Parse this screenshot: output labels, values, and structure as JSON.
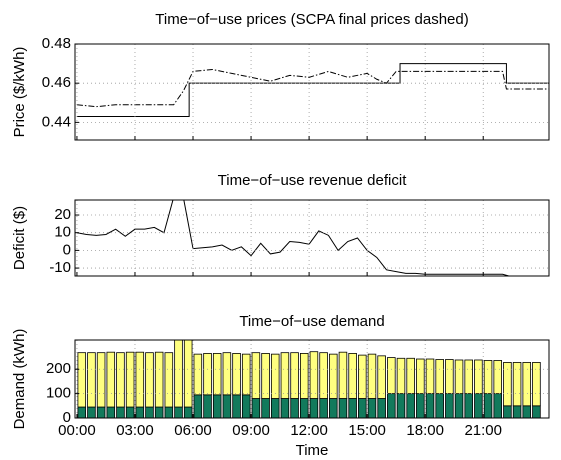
{
  "chart_data": [
    {
      "type": "line",
      "title": "Time−of−use prices (SCPA final prices dashed)",
      "ylabel": "Price ($/kWh)",
      "xlim": [
        -0.1,
        24.4
      ],
      "xticks": [
        0,
        3,
        6,
        9,
        12,
        15,
        18,
        21
      ],
      "ylim": [
        0.431,
        0.48
      ],
      "yticks": [
        0.44,
        0.46,
        0.48
      ],
      "grid": true,
      "series": [
        {
          "color": "#000000",
          "style": "solid",
          "x": [
            0,
            5.8,
            5.8,
            16.7,
            16.7,
            22.2,
            22.2,
            24.4
          ],
          "values": [
            0.443,
            0.443,
            0.46,
            0.46,
            0.47,
            0.47,
            0.46,
            0.46
          ]
        },
        {
          "color": "#000000",
          "style": "dashdot",
          "x": [
            0,
            1,
            2,
            3,
            4,
            5,
            5.5,
            6,
            7,
            8,
            9,
            10,
            11,
            12,
            13,
            14,
            15,
            15.5,
            16,
            16.5,
            17,
            22,
            22.2,
            24.4
          ],
          "values": [
            0.449,
            0.448,
            0.449,
            0.449,
            0.449,
            0.449,
            0.456,
            0.466,
            0.467,
            0.465,
            0.463,
            0.461,
            0.464,
            0.463,
            0.466,
            0.463,
            0.465,
            0.462,
            0.46,
            0.466,
            0.466,
            0.466,
            0.457,
            0.457
          ]
        }
      ]
    },
    {
      "type": "line",
      "title": "Time−of−use revenue deficit",
      "ylabel": "Deficit ($)",
      "xlim": [
        -0.1,
        24.4
      ],
      "xticks": [
        0,
        3,
        6,
        9,
        12,
        15,
        18,
        21
      ],
      "ylim": [
        -14.5,
        28.5
      ],
      "yticks": [
        -10,
        0,
        10,
        20
      ],
      "grid": true,
      "series": [
        {
          "color": "#000000",
          "style": "solid",
          "x": [
            0,
            0.5,
            1,
            1.5,
            2,
            2.5,
            3,
            3.5,
            4,
            4.5,
            5,
            5.5,
            6,
            6.5,
            7,
            7.5,
            8,
            8.5,
            9,
            9.5,
            10,
            10.5,
            11,
            11.5,
            12,
            12.5,
            13,
            13.5,
            14,
            14.5,
            15,
            15.5,
            16,
            16.5,
            17,
            17.5,
            18,
            18.5,
            19,
            19.5,
            20,
            20.5,
            21,
            21.5,
            22,
            22.5,
            23,
            23.5
          ],
          "values": [
            10,
            9,
            8.5,
            9,
            12,
            8,
            12,
            12,
            13,
            10,
            30,
            30,
            1,
            1.5,
            2,
            3,
            0,
            2,
            -3,
            4,
            -2,
            -1,
            5,
            4.5,
            3.5,
            11,
            8.5,
            0,
            5,
            7,
            0,
            -4,
            -11,
            -12,
            -13,
            -13,
            -13.5,
            -13.5,
            -13.5,
            -13.5,
            -13.5,
            -13.5,
            -13.5,
            -13.5,
            -13.5,
            -15,
            -15,
            -15
          ]
        }
      ]
    },
    {
      "type": "bar",
      "title": "Time−of−use demand",
      "ylabel": "Demand (kWh)",
      "xlabel": "Time",
      "stacked": true,
      "xlim": [
        -0.1,
        24.4
      ],
      "xticks": [
        {
          "value": 0,
          "label": "00:00"
        },
        {
          "value": 3,
          "label": "03:00"
        },
        {
          "value": 6,
          "label": "06:00"
        },
        {
          "value": 9,
          "label": "09:00"
        },
        {
          "value": 12,
          "label": "12:00"
        },
        {
          "value": 15,
          "label": "15:00"
        },
        {
          "value": 18,
          "label": "18:00"
        },
        {
          "value": 21,
          "label": "21:00"
        }
      ],
      "ylim": [
        0,
        320
      ],
      "yticks": [
        0,
        100,
        200
      ],
      "grid": true,
      "x": [
        0.25,
        0.75,
        1.25,
        1.75,
        2.25,
        2.75,
        3.25,
        3.75,
        4.25,
        4.75,
        5.25,
        5.75,
        6.25,
        6.75,
        7.25,
        7.75,
        8.25,
        8.75,
        9.25,
        9.75,
        10.25,
        10.75,
        11.25,
        11.75,
        12.25,
        12.75,
        13.25,
        13.75,
        14.25,
        14.75,
        15.25,
        15.75,
        16.25,
        16.75,
        17.25,
        17.75,
        18.25,
        18.75,
        19.25,
        19.75,
        20.25,
        20.75,
        21.25,
        21.75,
        22.25,
        22.75,
        23.25,
        23.75
      ],
      "series": [
        {
          "color": "#127a5c",
          "values": [
            45,
            45,
            45,
            45,
            45,
            45,
            45,
            45,
            45,
            45,
            45,
            45,
            95,
            95,
            95,
            95,
            95,
            95,
            80,
            80,
            80,
            80,
            80,
            80,
            80,
            80,
            80,
            80,
            80,
            80,
            80,
            80,
            100,
            100,
            100,
            100,
            100,
            100,
            100,
            100,
            100,
            100,
            100,
            100,
            50,
            50,
            50,
            50
          ]
        },
        {
          "color": "#ffff80",
          "values": [
            223,
            223,
            223,
            225,
            223,
            225,
            225,
            223,
            225,
            223,
            295,
            295,
            167,
            170,
            170,
            173,
            170,
            167,
            188,
            185,
            182,
            188,
            188,
            185,
            192,
            188,
            182,
            190,
            185,
            178,
            182,
            175,
            148,
            145,
            145,
            142,
            142,
            140,
            140,
            138,
            138,
            138,
            136,
            136,
            178,
            178,
            178,
            178
          ]
        }
      ]
    }
  ]
}
